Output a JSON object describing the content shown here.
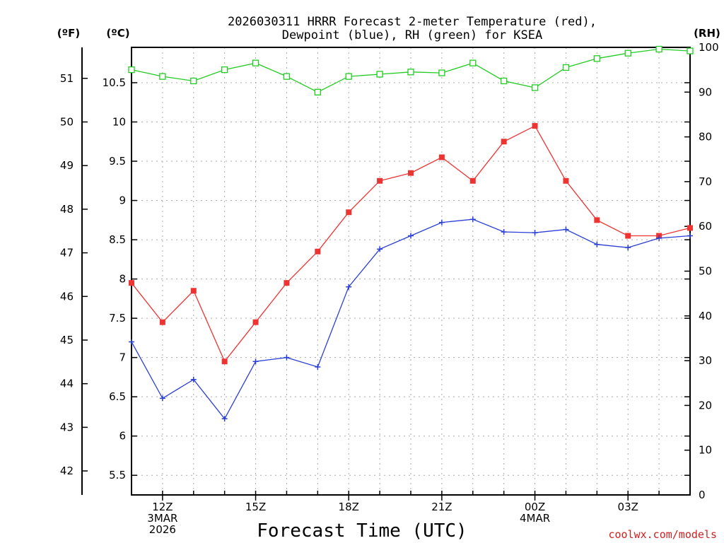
{
  "chart_data": {
    "type": "line",
    "title_lines": [
      "2026030311 HRRR Forecast 2-meter Temperature (red),",
      "Dewpoint (blue), RH (green) for KSEA"
    ],
    "xlabel": "Forecast Time (UTC)",
    "credit": "coolwx.com/models",
    "units": {
      "fahrenheit": "(ºF)",
      "celsius": "(ºC)",
      "rh": "(RH)"
    },
    "x": [
      11,
      12,
      13,
      14,
      15,
      16,
      17,
      18,
      19,
      20,
      21,
      22,
      23,
      24,
      25,
      26,
      27,
      28,
      29
    ],
    "xlim": [
      11,
      29
    ],
    "x_ticks": [
      {
        "x": 12,
        "lines": [
          "12Z",
          "3MAR",
          "2026"
        ]
      },
      {
        "x": 15,
        "lines": [
          "15Z"
        ]
      },
      {
        "x": 18,
        "lines": [
          "18Z"
        ]
      },
      {
        "x": 21,
        "lines": [
          "21Z"
        ]
      },
      {
        "x": 24,
        "lines": [
          "00Z",
          "4MAR"
        ]
      },
      {
        "x": 27,
        "lines": [
          "03Z"
        ]
      }
    ],
    "celsius_axis": {
      "ylim": [
        5.25,
        10.95
      ],
      "ticks": [
        "5.5",
        "6",
        "6.5",
        "7",
        "7.5",
        "8",
        "8.5",
        "9",
        "9.5",
        "10",
        "10.5"
      ]
    },
    "fahrenheit_axis": {
      "ticks": [
        "42",
        "43",
        "44",
        "45",
        "46",
        "47",
        "48",
        "49",
        "50",
        "51"
      ]
    },
    "rh_axis": {
      "ylim": [
        0,
        100
      ],
      "ticks": [
        "0",
        "10",
        "20",
        "30",
        "40",
        "50",
        "60",
        "70",
        "80",
        "90",
        "100"
      ]
    },
    "series": [
      {
        "name": "Temperature",
        "axis": "celsius",
        "color": "#ee3333",
        "marker": "filled-square",
        "values": [
          7.95,
          7.45,
          7.85,
          6.95,
          7.45,
          7.95,
          8.35,
          8.85,
          9.25,
          9.35,
          9.55,
          9.25,
          9.75,
          9.95,
          9.25,
          8.75,
          8.55,
          8.55,
          8.65
        ]
      },
      {
        "name": "Dewpoint",
        "axis": "celsius",
        "color": "#2a3fd6",
        "marker": "plus",
        "values": [
          7.2,
          6.48,
          6.72,
          6.22,
          6.95,
          7.0,
          6.88,
          7.9,
          8.38,
          8.55,
          8.72,
          8.76,
          8.6,
          8.59,
          8.63,
          8.44,
          8.4,
          8.52,
          8.55
        ]
      },
      {
        "name": "RH",
        "axis": "rh",
        "color": "#22cc22",
        "marker": "open-square",
        "values": [
          95,
          93.5,
          92.5,
          95,
          96.5,
          93.5,
          90,
          93.5,
          94,
          94.5,
          94.3,
          96.5,
          92.5,
          91,
          95.5,
          97.5,
          98.7,
          99.6,
          99.2
        ]
      }
    ]
  }
}
